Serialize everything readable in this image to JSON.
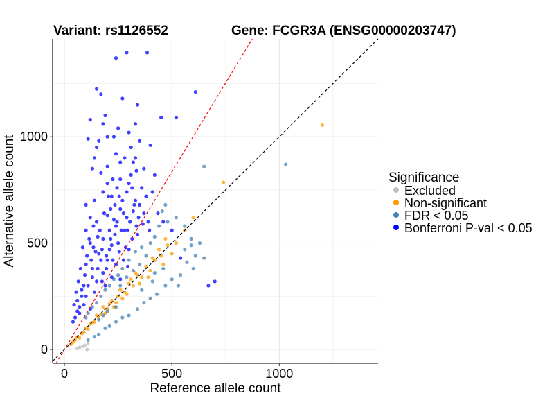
{
  "chart_data": {
    "type": "scatter",
    "title_left": "Variant: rs1126552",
    "title_right": "Gene: FCGR3A (ENSG00000203747)",
    "xlabel": "Reference allele count",
    "ylabel": "Alternative allele count",
    "xlim": [
      -55,
      1460
    ],
    "ylim": [
      -65,
      1460
    ],
    "xticks": [
      0,
      500,
      1000
    ],
    "yticks": [
      0,
      500,
      1000
    ],
    "grid": true,
    "reference_lines": [
      {
        "name": "identity",
        "slope": 1.0,
        "color": "#000000",
        "dash": "dashed"
      },
      {
        "name": "bonferroni-threshold",
        "slope": 1.67,
        "color": "#ff0000",
        "dash": "dashed"
      }
    ],
    "legend": {
      "title": "Significance",
      "position": "right",
      "entries": [
        {
          "label": "Excluded",
          "color": "#bebebe"
        },
        {
          "label": "Non-significant",
          "color": "#ff9900"
        },
        {
          "label": "FDR < 0.05",
          "color": "#4682b4"
        },
        {
          "label": "Bonferroni P-val < 0.05",
          "color": "#0000ff"
        }
      ]
    },
    "series": [
      {
        "name": "Excluded",
        "color": "#bebebe",
        "points": [
          [
            70,
            10
          ],
          [
            105,
            0
          ],
          [
            85,
            15
          ],
          [
            110,
            30
          ],
          [
            60,
            5
          ],
          [
            95,
            20
          ]
        ]
      },
      {
        "name": "Non-significant",
        "color": "#ff9900",
        "points": [
          [
            1200,
            1055
          ],
          [
            740,
            785
          ],
          [
            600,
            620
          ],
          [
            560,
            560
          ],
          [
            520,
            500
          ],
          [
            480,
            490
          ],
          [
            450,
            440
          ],
          [
            420,
            420
          ],
          [
            400,
            370
          ],
          [
            380,
            390
          ],
          [
            360,
            340
          ],
          [
            340,
            350
          ],
          [
            320,
            300
          ],
          [
            300,
            310
          ],
          [
            280,
            270
          ],
          [
            260,
            280
          ],
          [
            240,
            220
          ],
          [
            220,
            230
          ],
          [
            200,
            190
          ],
          [
            180,
            200
          ],
          [
            160,
            150
          ],
          [
            150,
            160
          ],
          [
            140,
            130
          ],
          [
            120,
            120
          ],
          [
            110,
            95
          ],
          [
            100,
            100
          ],
          [
            90,
            80
          ],
          [
            80,
            75
          ],
          [
            70,
            55
          ],
          [
            60,
            60
          ],
          [
            50,
            45
          ],
          [
            40,
            35
          ],
          [
            30,
            25
          ],
          [
            440,
            470
          ],
          [
            460,
            400
          ],
          [
            350,
            310
          ],
          [
            330,
            360
          ],
          [
            270,
            240
          ],
          [
            250,
            250
          ],
          [
            230,
            200
          ],
          [
            210,
            215
          ],
          [
            190,
            170
          ],
          [
            170,
            165
          ],
          [
            130,
            125
          ],
          [
            470,
            520
          ],
          [
            500,
            450
          ],
          [
            410,
            430
          ],
          [
            390,
            340
          ],
          [
            310,
            330
          ],
          [
            290,
            260
          ]
        ]
      },
      {
        "name": "FDR < 0.05",
        "color": "#4682b4",
        "points": [
          [
            1030,
            870
          ],
          [
            650,
            860
          ],
          [
            560,
            580
          ],
          [
            520,
            620
          ],
          [
            470,
            680
          ],
          [
            455,
            650
          ],
          [
            590,
            520
          ],
          [
            630,
            500
          ],
          [
            650,
            430
          ],
          [
            600,
            380
          ],
          [
            570,
            410
          ],
          [
            540,
            350
          ],
          [
            500,
            330
          ],
          [
            470,
            300
          ],
          [
            430,
            260
          ],
          [
            400,
            240
          ],
          [
            370,
            220
          ],
          [
            340,
            190
          ],
          [
            300,
            160
          ],
          [
            270,
            150
          ],
          [
            240,
            130
          ],
          [
            210,
            110
          ],
          [
            190,
            100
          ],
          [
            160,
            70
          ],
          [
            140,
            60
          ],
          [
            110,
            45
          ],
          [
            300,
            420
          ],
          [
            270,
            380
          ],
          [
            250,
            350
          ],
          [
            230,
            330
          ],
          [
            210,
            300
          ],
          [
            190,
            280
          ],
          [
            170,
            250
          ],
          [
            150,
            220
          ],
          [
            130,
            200
          ],
          [
            110,
            170
          ],
          [
            100,
            150
          ],
          [
            330,
            460
          ],
          [
            360,
            480
          ],
          [
            400,
            500
          ],
          [
            420,
            530
          ],
          [
            380,
            440
          ],
          [
            350,
            400
          ],
          [
            320,
            370
          ],
          [
            290,
            340
          ],
          [
            260,
            300
          ],
          [
            440,
            580
          ],
          [
            480,
            600
          ],
          [
            590,
            490
          ],
          [
            530,
            300
          ],
          [
            610,
            440
          ],
          [
            560,
            470
          ],
          [
            460,
            380
          ],
          [
            410,
            320
          ],
          [
            240,
            200
          ],
          [
            200,
            180
          ],
          [
            180,
            160
          ],
          [
            160,
            140
          ],
          [
            360,
            280
          ],
          [
            420,
            360
          ]
        ]
      },
      {
        "name": "Bonferroni P-val < 0.05",
        "color": "#0000ff",
        "points": [
          [
            290,
            1395
          ],
          [
            385,
            1395
          ],
          [
            240,
            1370
          ],
          [
            610,
            1210
          ],
          [
            150,
            1225
          ],
          [
            170,
            1200
          ],
          [
            270,
            1180
          ],
          [
            340,
            1150
          ],
          [
            450,
            1090
          ],
          [
            520,
            1090
          ],
          [
            120,
            1080
          ],
          [
            180,
            1060
          ],
          [
            250,
            1040
          ],
          [
            300,
            1020
          ],
          [
            200,
            1000
          ],
          [
            110,
            990
          ],
          [
            350,
            980
          ],
          [
            400,
            960
          ],
          [
            150,
            950
          ],
          [
            240,
            920
          ],
          [
            280,
            900
          ],
          [
            320,
            880
          ],
          [
            200,
            860
          ],
          [
            130,
            850
          ],
          [
            170,
            830
          ],
          [
            260,
            800
          ],
          [
            300,
            780
          ],
          [
            360,
            760
          ],
          [
            410,
            740
          ],
          [
            180,
            740
          ],
          [
            220,
            720
          ],
          [
            140,
            700
          ],
          [
            100,
            680
          ],
          [
            260,
            660
          ],
          [
            320,
            650
          ],
          [
            200,
            630
          ],
          [
            150,
            600
          ],
          [
            240,
            580
          ],
          [
            280,
            560
          ],
          [
            340,
            540
          ],
          [
            180,
            520
          ],
          [
            120,
            500
          ],
          [
            220,
            490
          ],
          [
            300,
            470
          ],
          [
            160,
            450
          ],
          [
            200,
            420
          ],
          [
            240,
            400
          ],
          [
            100,
            400
          ],
          [
            130,
            380
          ],
          [
            180,
            360
          ],
          [
            220,
            340
          ],
          [
            260,
            330
          ],
          [
            150,
            320
          ],
          [
            110,
            300
          ],
          [
            190,
            300
          ],
          [
            80,
            280
          ],
          [
            140,
            270
          ],
          [
            100,
            250
          ],
          [
            60,
            230
          ],
          [
            90,
            210
          ],
          [
            120,
            190
          ],
          [
            70,
            170
          ],
          [
            50,
            150
          ],
          [
            40,
            130
          ],
          [
            210,
            560
          ],
          [
            230,
            610
          ],
          [
            270,
            700
          ],
          [
            290,
            740
          ],
          [
            310,
            820
          ],
          [
            330,
            700
          ],
          [
            370,
            640
          ],
          [
            390,
            600
          ],
          [
            250,
            500
          ],
          [
            210,
            470
          ],
          [
            170,
            420
          ],
          [
            130,
            340
          ],
          [
            90,
            300
          ],
          [
            80,
            250
          ],
          [
            70,
            200
          ],
          [
            60,
            180
          ],
          [
            700,
            320
          ],
          [
            670,
            300
          ],
          [
            540,
            430
          ],
          [
            500,
            560
          ],
          [
            460,
            600
          ],
          [
            230,
            1000
          ],
          [
            190,
            1100
          ],
          [
            160,
            980
          ],
          [
            330,
            1060
          ],
          [
            140,
            900
          ],
          [
            290,
            620
          ],
          [
            350,
            680
          ],
          [
            380,
            720
          ],
          [
            420,
            820
          ],
          [
            120,
            620
          ],
          [
            100,
            560
          ],
          [
            85,
            480
          ],
          [
            75,
            380
          ],
          [
            65,
            320
          ],
          [
            55,
            270
          ],
          [
            45,
            210
          ],
          [
            95,
            350
          ],
          [
            105,
            440
          ],
          [
            200,
            780
          ],
          [
            260,
            880
          ],
          [
            310,
            950
          ],
          [
            330,
            900
          ],
          [
            370,
            850
          ],
          [
            215,
            660
          ],
          [
            235,
            540
          ],
          [
            255,
            460
          ],
          [
            275,
            420
          ],
          [
            295,
            390
          ],
          [
            315,
            520
          ],
          [
            335,
            580
          ],
          [
            395,
            560
          ],
          [
            435,
            640
          ],
          [
            195,
            380
          ],
          [
            175,
            470
          ],
          [
            155,
            530
          ],
          [
            135,
            580
          ],
          [
            115,
            520
          ],
          [
            145,
            460
          ],
          [
            165,
            560
          ],
          [
            185,
            640
          ],
          [
            205,
            720
          ],
          [
            225,
            800
          ],
          [
            245,
            760
          ],
          [
            265,
            560
          ],
          [
            285,
            480
          ],
          [
            305,
            600
          ],
          [
            325,
            680
          ],
          [
            345,
            620
          ],
          [
            365,
            590
          ],
          [
            225,
            420
          ],
          [
            245,
            600
          ],
          [
            125,
            420
          ],
          [
            135,
            480
          ],
          [
            155,
            380
          ],
          [
            175,
            320
          ],
          [
            195,
            440
          ],
          [
            215,
            520
          ],
          [
            235,
            680
          ],
          [
            255,
            720
          ],
          [
            275,
            640
          ],
          [
            295,
            560
          ],
          [
            315,
            760
          ],
          [
            335,
            840
          ]
        ]
      }
    ]
  }
}
